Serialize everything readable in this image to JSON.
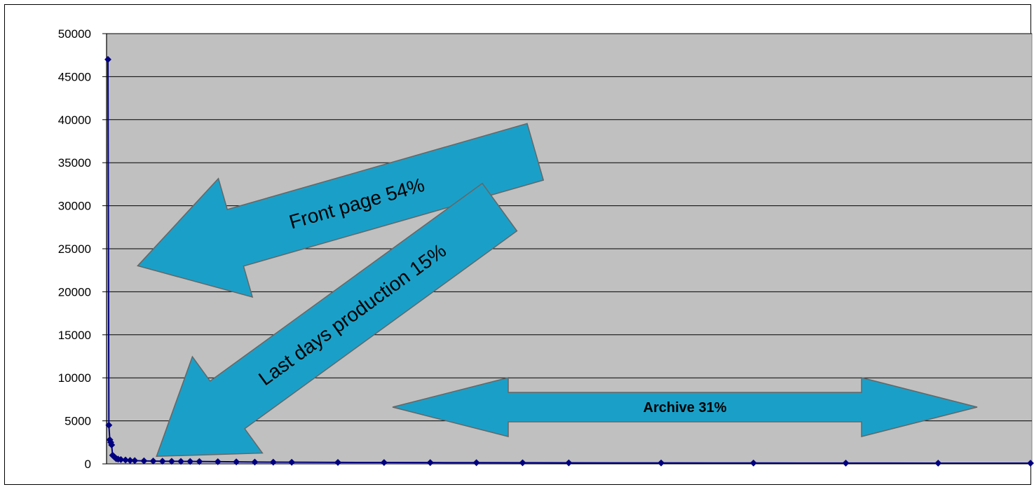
{
  "chart_data": {
    "type": "line",
    "title": "",
    "xlabel": "",
    "ylabel": "",
    "ylim": [
      0,
      50000
    ],
    "yticks": [
      0,
      5000,
      10000,
      15000,
      20000,
      25000,
      30000,
      35000,
      40000,
      45000,
      50000
    ],
    "grid": true,
    "plot_background": "#c0c0c0",
    "series": [
      {
        "color": "#000080",
        "x": [
          1,
          2,
          3,
          4,
          5,
          6,
          7,
          8,
          9,
          10,
          12,
          15,
          20,
          25,
          30,
          40,
          50,
          60,
          70,
          80,
          90,
          100,
          120,
          140,
          160,
          180,
          200,
          250,
          300,
          350,
          400,
          450,
          500,
          600,
          700,
          800,
          900,
          1000
        ],
        "values": [
          47000,
          4500,
          2800,
          2500,
          2200,
          1000,
          900,
          800,
          700,
          600,
          550,
          500,
          450,
          400,
          380,
          350,
          330,
          310,
          300,
          290,
          280,
          270,
          250,
          230,
          210,
          200,
          190,
          170,
          160,
          150,
          140,
          130,
          120,
          110,
          100,
          90,
          85,
          80
        ]
      }
    ],
    "annotations": [
      {
        "text": "Front page 54%",
        "color": "#1aa0c8"
      },
      {
        "text": "Last days production 15%",
        "color": "#1aa0c8"
      },
      {
        "text": "Archive 31%",
        "color": "#1aa0c8"
      }
    ]
  }
}
